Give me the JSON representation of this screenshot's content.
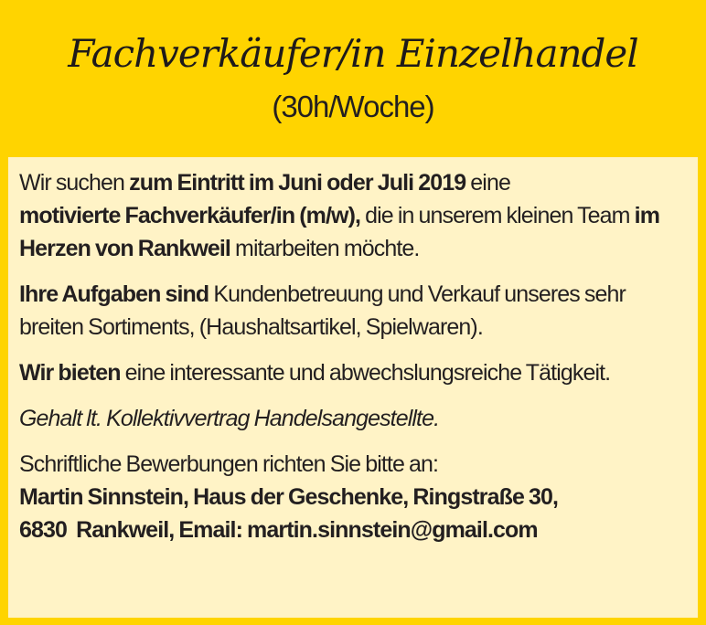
{
  "title": "Fachverkäufer/in Einzelhandel",
  "subtitle": "(30h/Woche)",
  "paragraphs": {
    "p1": [
      "Wir suchen ",
      "zum Eintritt im Juni oder Juli 2019",
      " eine ",
      "motivierte Fachverkäufer/in (m/w),",
      " die in unserem kleinen Team ",
      "im Herzen von Rankweil",
      " mitarbeiten möchte."
    ],
    "p2": [
      "Ihre Aufgaben sind",
      " Kundenbetreuung und Verkauf unseres sehr breiten Sortiments, (Haushaltsartikel, Spielwaren)."
    ],
    "p3": [
      "Wir bieten",
      " eine interessante und abwechslungsreiche Tätigkeit."
    ],
    "p4": "Gehalt lt. Kollektivvertrag Handelsangestellte.",
    "p5": [
      "Schriftliche Bewerbungen richten Sie bitte an:",
      "Martin Sinnstein, Haus der Geschenke, Ringstraße 30,",
      "6830  Rankweil, Email: martin.sinnstein@gmail.com"
    ]
  },
  "colors": {
    "background": "#FFD400",
    "box": "#FFF3C6",
    "text": "#231f20"
  }
}
